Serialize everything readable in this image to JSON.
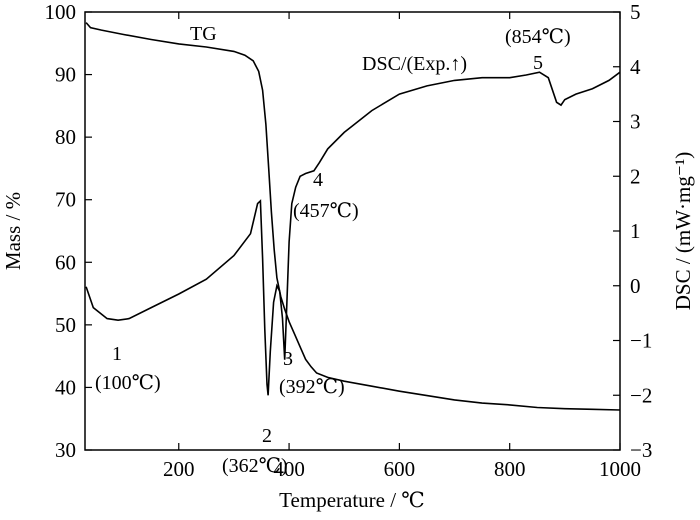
{
  "chart_data": {
    "type": "line",
    "xlabel": "Temperature / ℃",
    "ylabel_left": "Mass / %",
    "ylabel_right": "DSC / (mW·mg⁻¹)",
    "xlim": [
      30,
      1000
    ],
    "ylim_left": [
      30,
      100
    ],
    "ylim_right": [
      -3,
      5
    ],
    "x_ticks": [
      200,
      400,
      600,
      800,
      1000
    ],
    "y_left_ticks": [
      30,
      40,
      50,
      60,
      70,
      80,
      90,
      100
    ],
    "y_right_ticks": [
      -3,
      -2,
      -1,
      0,
      1,
      2,
      3,
      4,
      5
    ],
    "series": [
      {
        "name": "TG",
        "axis": "left",
        "points": [
          [
            32,
            98.3
          ],
          [
            40,
            97.5
          ],
          [
            60,
            97.1
          ],
          [
            100,
            96.4
          ],
          [
            150,
            95.6
          ],
          [
            200,
            94.9
          ],
          [
            250,
            94.4
          ],
          [
            300,
            93.7
          ],
          [
            320,
            93.1
          ],
          [
            335,
            92.2
          ],
          [
            345,
            90.5
          ],
          [
            352,
            87.5
          ],
          [
            358,
            82
          ],
          [
            363,
            75
          ],
          [
            368,
            68
          ],
          [
            373,
            62
          ],
          [
            378,
            57.5
          ],
          [
            385,
            54.5
          ],
          [
            392,
            52.5
          ],
          [
            400,
            50.5
          ],
          [
            410,
            48.5
          ],
          [
            420,
            46.5
          ],
          [
            430,
            44.5
          ],
          [
            440,
            43.3
          ],
          [
            450,
            42.3
          ],
          [
            470,
            41.6
          ],
          [
            500,
            41
          ],
          [
            550,
            40.2
          ],
          [
            600,
            39.4
          ],
          [
            650,
            38.7
          ],
          [
            700,
            38
          ],
          [
            750,
            37.5
          ],
          [
            800,
            37.2
          ],
          [
            850,
            36.8
          ],
          [
            900,
            36.6
          ],
          [
            950,
            36.5
          ],
          [
            1000,
            36.4
          ]
        ]
      },
      {
        "name": "DSC/(Exp.↑)",
        "axis": "right",
        "points": [
          [
            32,
            -0.02
          ],
          [
            45,
            -0.4
          ],
          [
            70,
            -0.6
          ],
          [
            90,
            -0.63
          ],
          [
            110,
            -0.6
          ],
          [
            150,
            -0.4
          ],
          [
            200,
            -0.15
          ],
          [
            250,
            0.12
          ],
          [
            300,
            0.55
          ],
          [
            330,
            0.95
          ],
          [
            343,
            1.5
          ],
          [
            348,
            1.55
          ],
          [
            352,
            0.5
          ],
          [
            356,
            -0.8
          ],
          [
            360,
            -1.8
          ],
          [
            362,
            -2.0
          ],
          [
            366,
            -1.2
          ],
          [
            372,
            -0.3
          ],
          [
            378,
            0.0
          ],
          [
            383,
            -0.1
          ],
          [
            388,
            -0.6
          ],
          [
            392,
            -1.35
          ],
          [
            396,
            -0.3
          ],
          [
            400,
            0.8
          ],
          [
            405,
            1.5
          ],
          [
            412,
            1.8
          ],
          [
            420,
            2.0
          ],
          [
            430,
            2.05
          ],
          [
            445,
            2.1
          ],
          [
            455,
            2.25
          ],
          [
            470,
            2.5
          ],
          [
            500,
            2.8
          ],
          [
            550,
            3.2
          ],
          [
            600,
            3.5
          ],
          [
            650,
            3.65
          ],
          [
            700,
            3.75
          ],
          [
            750,
            3.8
          ],
          [
            800,
            3.8
          ],
          [
            830,
            3.85
          ],
          [
            854,
            3.9
          ],
          [
            870,
            3.8
          ],
          [
            885,
            3.35
          ],
          [
            893,
            3.3
          ],
          [
            900,
            3.4
          ],
          [
            920,
            3.5
          ],
          [
            950,
            3.6
          ],
          [
            980,
            3.75
          ],
          [
            1000,
            3.9
          ]
        ]
      }
    ],
    "annotations": [
      {
        "id": "TG",
        "label": "TG"
      },
      {
        "id": "DSC",
        "label": "DSC/(Exp.↑)"
      },
      {
        "id": "p1",
        "label": "1",
        "detail": "(100℃)"
      },
      {
        "id": "p2",
        "label": "2",
        "detail": "(362℃)"
      },
      {
        "id": "p3",
        "label": "3",
        "detail": "(392℃)"
      },
      {
        "id": "p4",
        "label": "4",
        "detail": "(457℃)"
      },
      {
        "id": "p5",
        "label": "5",
        "detail": "(854℃)"
      }
    ]
  }
}
